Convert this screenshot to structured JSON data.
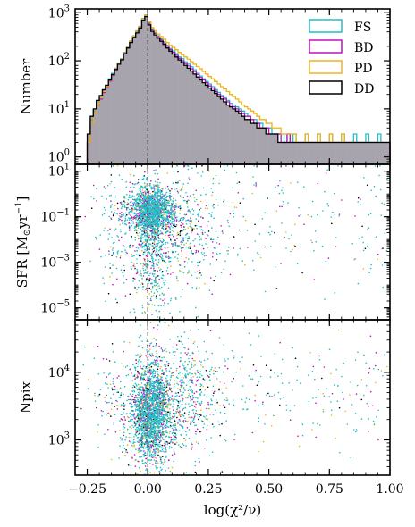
{
  "chart_data": [
    {
      "id": "hist",
      "type": "step-histogram",
      "ylabel": "Number",
      "yscale": "log",
      "ylim": [
        0.7,
        1200
      ],
      "xlim": [
        -0.3,
        1.0
      ],
      "ytick_labels": [
        "10^0",
        "10^1",
        "10^2",
        "10^3"
      ],
      "bin_edges_start": -0.25,
      "bin_width": 0.0125,
      "reference_line_x": 0,
      "legend": {
        "placement": "top-right",
        "entries": [
          "FS",
          "BD",
          "PD",
          "DD"
        ]
      },
      "series": [
        {
          "name": "FS",
          "color": "#1fc0c8",
          "values": [
            2,
            6,
            9,
            14,
            18,
            24,
            30,
            42,
            55,
            70,
            90,
            110,
            150,
            200,
            260,
            330,
            420,
            520,
            760,
            900,
            620,
            460,
            390,
            330,
            290,
            250,
            210,
            180,
            160,
            140,
            120,
            110,
            95,
            85,
            75,
            65,
            55,
            48,
            42,
            37,
            33,
            29,
            25,
            22,
            19,
            17,
            15,
            13,
            12,
            11,
            10,
            9,
            8,
            7,
            6,
            6,
            5,
            5,
            4,
            4,
            4,
            3,
            3,
            3,
            3,
            2,
            3,
            2,
            3,
            2,
            2,
            2,
            3,
            2,
            2,
            2,
            3,
            2,
            2,
            2,
            3,
            2,
            2,
            2,
            3,
            2,
            2,
            2,
            3,
            2,
            2,
            2,
            3,
            2,
            2,
            2,
            3,
            2,
            2,
            2
          ]
        },
        {
          "name": "BD",
          "color": "#c20fc2",
          "values": [
            2,
            5,
            8,
            12,
            16,
            22,
            28,
            38,
            50,
            65,
            85,
            105,
            140,
            190,
            250,
            320,
            400,
            500,
            730,
            860,
            600,
            440,
            370,
            315,
            275,
            235,
            200,
            170,
            150,
            130,
            112,
            100,
            88,
            78,
            68,
            60,
            52,
            45,
            40,
            35,
            30,
            27,
            23,
            20,
            18,
            16,
            14,
            12,
            11,
            10,
            9,
            8,
            7,
            7,
            6,
            5,
            5,
            4,
            4,
            4,
            3,
            3,
            3,
            3,
            2,
            2,
            3,
            2,
            2,
            2,
            2,
            2,
            2,
            2,
            2,
            2,
            2,
            2,
            2,
            2,
            2,
            2,
            2,
            2,
            2,
            2,
            2,
            2,
            2,
            2,
            2,
            2,
            2,
            2,
            2,
            2,
            2,
            2,
            2,
            2
          ]
        },
        {
          "name": "PD",
          "color": "#f0b318",
          "values": [
            2,
            5,
            8,
            12,
            17,
            23,
            29,
            40,
            52,
            68,
            88,
            108,
            145,
            195,
            255,
            325,
            410,
            510,
            740,
            880,
            640,
            490,
            420,
            360,
            320,
            280,
            240,
            210,
            190,
            170,
            150,
            135,
            120,
            108,
            96,
            85,
            76,
            68,
            60,
            53,
            47,
            42,
            37,
            33,
            29,
            26,
            23,
            20,
            18,
            16,
            14,
            12,
            11,
            10,
            9,
            8,
            7,
            6,
            6,
            5,
            5,
            4,
            4,
            4,
            3,
            3,
            3,
            3,
            3,
            2,
            2,
            2,
            3,
            2,
            2,
            2,
            3,
            2,
            2,
            2,
            3,
            2,
            2,
            2,
            3,
            2,
            2,
            2,
            2,
            2,
            2,
            2,
            2,
            2,
            2,
            2,
            2,
            2,
            2,
            2
          ]
        },
        {
          "name": "DD",
          "color": "#000000",
          "values": [
            3,
            7,
            10,
            15,
            19,
            25,
            31,
            40,
            52,
            66,
            85,
            105,
            140,
            185,
            240,
            305,
            380,
            480,
            700,
            830,
            560,
            410,
            345,
            295,
            255,
            220,
            185,
            158,
            138,
            120,
            104,
            92,
            80,
            70,
            61,
            53,
            46,
            40,
            35,
            31,
            27,
            24,
            21,
            18,
            16,
            14,
            12,
            11,
            10,
            9,
            8,
            7,
            6,
            6,
            5,
            5,
            4,
            4,
            4,
            3,
            3,
            3,
            3,
            2,
            2,
            2,
            2,
            2,
            2,
            2,
            2,
            2,
            2,
            2,
            2,
            2,
            2,
            2,
            2,
            2,
            2,
            2,
            2,
            2,
            2,
            2,
            2,
            2,
            2,
            2,
            2,
            2,
            2,
            2,
            2,
            2,
            2,
            2,
            2,
            2
          ]
        }
      ],
      "fill_color": "#a8a4ae"
    },
    {
      "id": "sfr",
      "type": "scatter",
      "ylabel_main": "SFR [M",
      "ylabel_sub": "⊙",
      "ylabel_unit": "yr",
      "ylabel_sup": "−1",
      "ylabel_end": "]",
      "yscale": "log",
      "ylim": [
        3e-06,
        20
      ],
      "xlim": [
        -0.3,
        1.0
      ],
      "ytick_labels": [
        "10^-5",
        "10^-3",
        "10^-1",
        "10^1"
      ],
      "floor_value": 2.2e-06,
      "reference_line_x": 0,
      "series_colors": {
        "FS": "#1fc0c8",
        "BD": "#c20fc2",
        "PD": "#f0b318",
        "DD": "#000000"
      }
    },
    {
      "id": "npix",
      "type": "scatter",
      "ylabel": "Npix",
      "xlabel": "log(χ²/ν)",
      "yscale": "log",
      "ylim": [
        300,
        60000
      ],
      "xlim": [
        -0.3,
        1.0
      ],
      "ytick_labels": [
        "10^3",
        "10^4"
      ],
      "xtick_labels": [
        "−0.25",
        "0.00",
        "0.25",
        "0.50",
        "0.75",
        "1.00"
      ],
      "xticks": [
        -0.25,
        0,
        0.25,
        0.5,
        0.75,
        1.0
      ],
      "reference_line_x": 0,
      "series_colors": {
        "FS": "#1fc0c8",
        "BD": "#c20fc2",
        "PD": "#f0b318",
        "DD": "#000000"
      }
    }
  ]
}
